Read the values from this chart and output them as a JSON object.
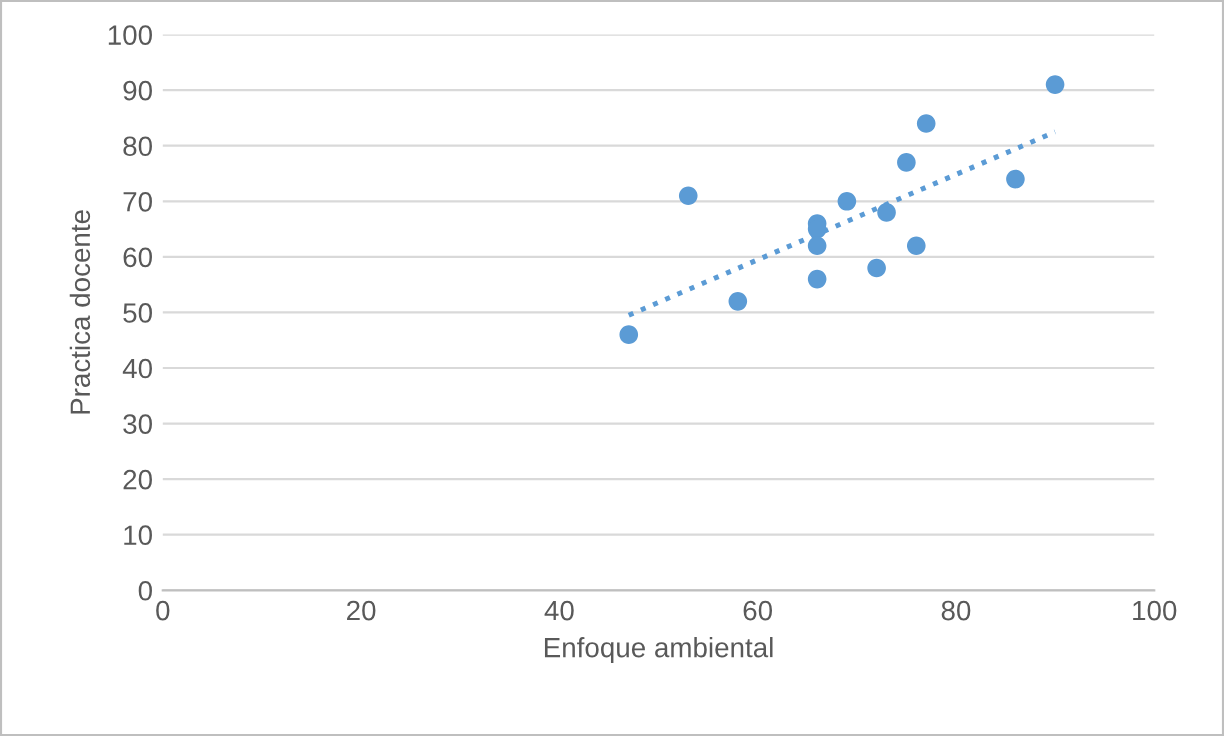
{
  "chart_data": {
    "type": "scatter",
    "xlabel": "Enfoque ambiental",
    "ylabel": "Practica docente",
    "xlim": [
      0,
      100
    ],
    "xticks": [
      0,
      20,
      40,
      60,
      80,
      100
    ],
    "ylim": [
      0,
      100
    ],
    "yticks": [
      0,
      10,
      20,
      30,
      40,
      50,
      60,
      70,
      80,
      90,
      100
    ],
    "grid": "y",
    "legend": false,
    "series": [
      {
        "color": "#5b9bd5",
        "marker": "circle",
        "x": [
          47,
          53,
          58,
          66,
          66,
          66,
          66,
          69,
          72,
          73,
          75,
          76,
          77,
          86,
          90
        ],
        "values": [
          46,
          71,
          52,
          66,
          65,
          62,
          56,
          70,
          58,
          68,
          77,
          62,
          84,
          74,
          91
        ]
      },
      {
        "type": "line",
        "color": "#5b9bd5",
        "line_style": "dotted",
        "marker": "none",
        "x": [
          47,
          90
        ],
        "values": [
          49.5,
          82.5
        ]
      }
    ]
  }
}
